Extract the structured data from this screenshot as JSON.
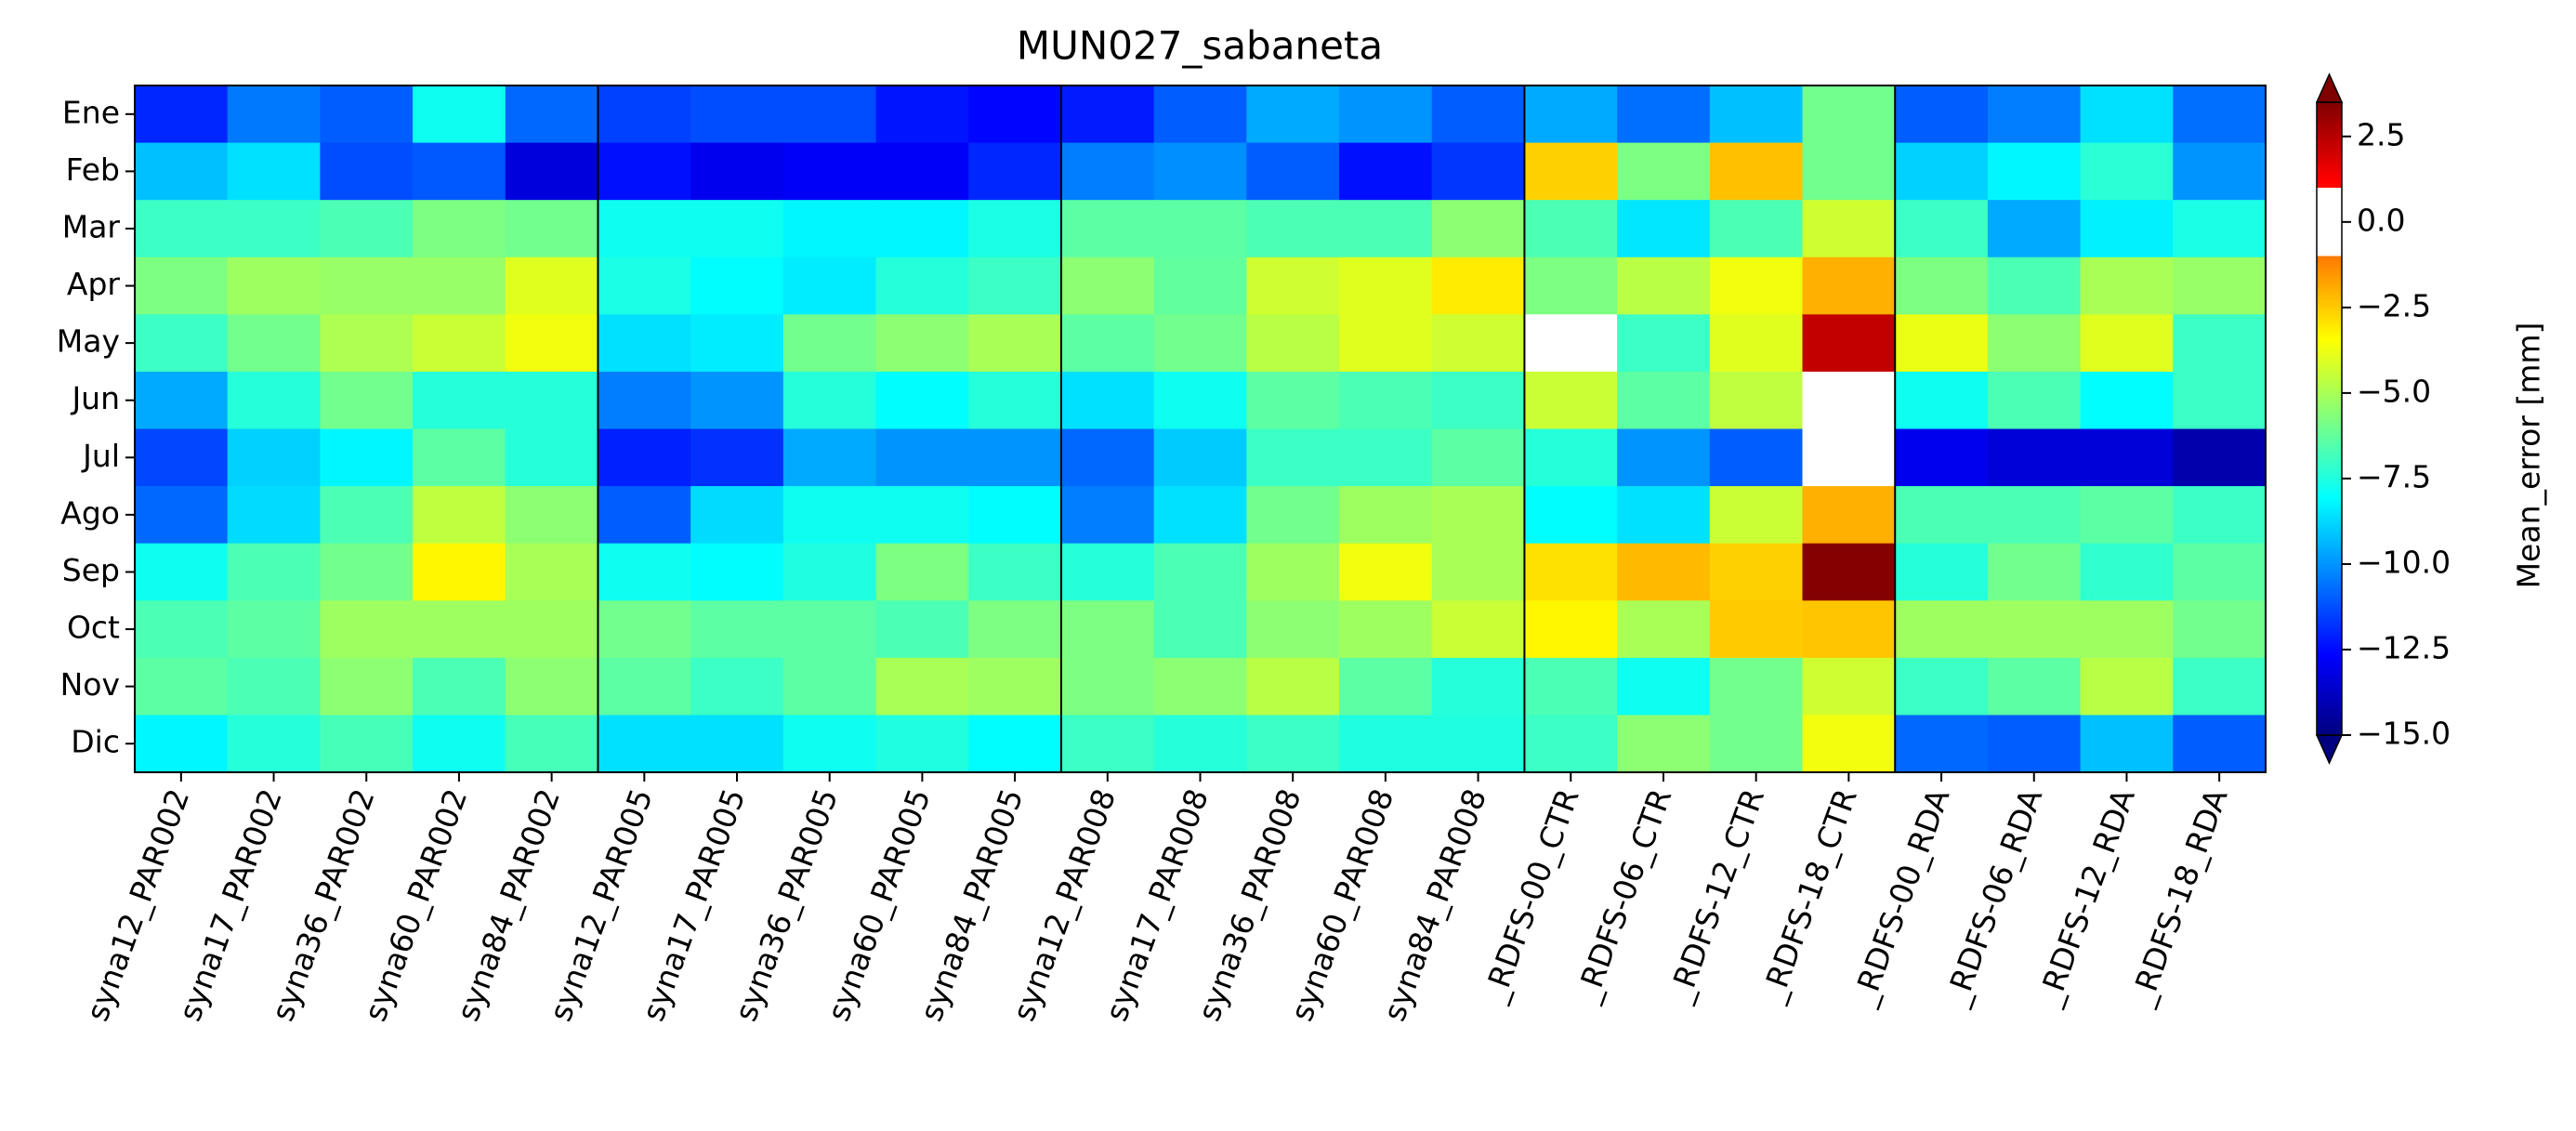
{
  "chart_data": {
    "type": "heatmap",
    "title": "MUN027_sabaneta",
    "x": [
      "syna12_PAR002",
      "syna17_PAR002",
      "syna36_PAR002",
      "syna60_PAR002",
      "syna84_PAR002",
      "syna12_PAR005",
      "syna17_PAR005",
      "syna36_PAR005",
      "syna60_PAR005",
      "syna84_PAR005",
      "syna12_PAR008",
      "syna17_PAR008",
      "syna36_PAR008",
      "syna60_PAR008",
      "syna84_PAR008",
      "_RDFS-00_CTR",
      "_RDFS-06_CTR",
      "_RDFS-12_CTR",
      "_RDFS-18_CTR",
      "_RDFS-00_RDA",
      "_RDFS-06_RDA",
      "_RDFS-12_RDA",
      "_RDFS-18_RDA"
    ],
    "y": [
      "Ene",
      "Feb",
      "Mar",
      "Apr",
      "May",
      "Jun",
      "Jul",
      "Ago",
      "Sep",
      "Oct",
      "Nov",
      "Dic"
    ],
    "values": [
      [
        -12,
        -10.5,
        -11,
        -7.8,
        -10.8,
        -11.5,
        -11.3,
        -11.3,
        -12.3,
        -12.6,
        -12.2,
        -11,
        -9.6,
        -10,
        -11,
        -9.6,
        -10.7,
        -9.2,
        -6,
        -11,
        -10.4,
        -8.6,
        -10.7
      ],
      [
        -9.2,
        -8.6,
        -11.3,
        -11.1,
        -13.3,
        -12.4,
        -13,
        -12.8,
        -12.8,
        -12,
        -10.4,
        -10.1,
        -11,
        -12.4,
        -11.7,
        -2.6,
        -5.8,
        -2.3,
        -6,
        -8.9,
        -8.2,
        -7.3,
        -10
      ],
      [
        -7,
        -7,
        -6.7,
        -5.8,
        -6,
        -7.8,
        -7.8,
        -8.2,
        -8.2,
        -7.6,
        -6.4,
        -6.4,
        -6.7,
        -6.7,
        -5.5,
        -6.7,
        -8.5,
        -6.7,
        -4.3,
        -7,
        -9.6,
        -8.3,
        -7.6
      ],
      [
        -5.8,
        -5.2,
        -5.3,
        -5.3,
        -4,
        -7.6,
        -8.1,
        -8.4,
        -7.4,
        -7,
        -5.5,
        -6.3,
        -4.3,
        -4,
        -3.1,
        -5.8,
        -4.7,
        -3.7,
        -2,
        -5.8,
        -6.7,
        -5,
        -5.3
      ],
      [
        -7,
        -6,
        -4.9,
        -4.4,
        -3.7,
        -8.6,
        -8.4,
        -6,
        -5.5,
        -5,
        -6.4,
        -6,
        -4.7,
        -4,
        -4.3,
        0,
        -7,
        -4,
        2.3,
        -3.8,
        -5.5,
        -4,
        -7
      ],
      [
        -9.6,
        -7.4,
        -6,
        -7.4,
        -7.4,
        -10.4,
        -10,
        -7.4,
        -8.1,
        -7.4,
        -8.6,
        -7.8,
        -6.4,
        -6.7,
        -7,
        -4.4,
        -6.4,
        -4.6,
        0,
        -7.8,
        -6.7,
        -8.1,
        -7
      ],
      [
        -11.4,
        -8.9,
        -8.2,
        -6.4,
        -7.4,
        -12.1,
        -11.8,
        -9.6,
        -10,
        -10,
        -10.8,
        -9,
        -7,
        -7,
        -6.4,
        -7.4,
        -10,
        -11,
        0,
        -13,
        -13.4,
        -13.4,
        -14.2
      ],
      [
        -10.8,
        -8.7,
        -6.7,
        -4.6,
        -5.5,
        -11,
        -8.7,
        -7.8,
        -7.8,
        -8.1,
        -10.4,
        -8.6,
        -6,
        -5.2,
        -5,
        -8.1,
        -8.6,
        -4.4,
        -2,
        -6.7,
        -6.7,
        -6.4,
        -7
      ],
      [
        -7.8,
        -6.7,
        -6,
        -3.3,
        -5,
        -7.8,
        -8.1,
        -7.5,
        -5.8,
        -7,
        -7.4,
        -6.7,
        -5.2,
        -3.7,
        -5,
        -2.9,
        -2.2,
        -2.6,
        3.4,
        -7.4,
        -6,
        -7.2,
        -6.4
      ],
      [
        -6.7,
        -6.4,
        -5.2,
        -5.2,
        -5.2,
        -6,
        -6.4,
        -6.4,
        -6.7,
        -5.8,
        -5.8,
        -6.7,
        -5.5,
        -5.2,
        -4.4,
        -3.3,
        -5,
        -2.5,
        -2.4,
        -5.2,
        -5.2,
        -5.2,
        -6
      ],
      [
        -6.4,
        -6.7,
        -5.5,
        -6.7,
        -5.5,
        -6.4,
        -7,
        -6.4,
        -5,
        -5.2,
        -5.8,
        -5.5,
        -4.7,
        -6.4,
        -7.4,
        -6.7,
        -7.8,
        -6,
        -4.3,
        -7,
        -6.4,
        -4.7,
        -7
      ],
      [
        -8.2,
        -7.4,
        -6.8,
        -7.8,
        -6.8,
        -8.6,
        -8.6,
        -7.8,
        -7.5,
        -8.1,
        -7,
        -7.4,
        -7,
        -7.5,
        -7.5,
        -7,
        -5.5,
        -6,
        -3.7,
        -10.8,
        -11,
        -9.2,
        -11
      ]
    ],
    "colormap": "jet",
    "colorbar_white": [
      -1,
      1
    ],
    "colorbar": {
      "label": "Mean_error [mm]",
      "lim": [
        -15,
        3.5
      ],
      "ticks": [
        2.5,
        {
          "value": 0,
          "label": "0.0"
        },
        {
          "value": -2.5,
          "label": "−2.5"
        },
        {
          "value": -5,
          "label": "−5.0"
        },
        {
          "value": -7.5,
          "label": "−7.5"
        },
        {
          "value": -10,
          "label": "−10.0"
        },
        {
          "value": -12.5,
          "label": "−12.5"
        },
        {
          "value": -15,
          "label": "−15.0"
        }
      ]
    }
  }
}
